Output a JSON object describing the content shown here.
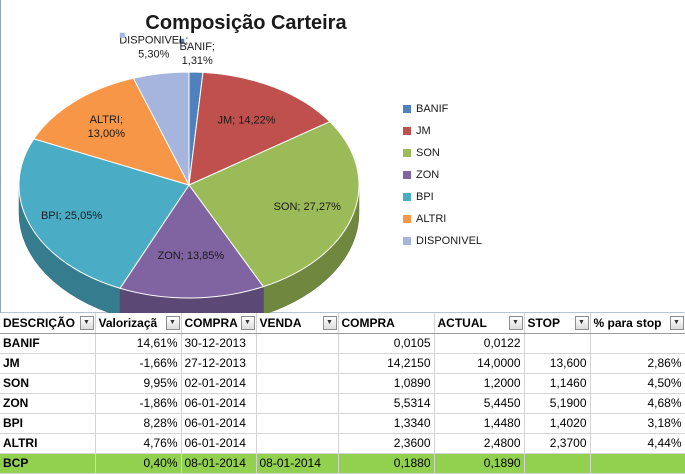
{
  "chart_data": {
    "type": "pie",
    "title": "Composição Carteira",
    "slices": [
      {
        "name": "BANIF",
        "value": 1.31,
        "label": "BANIF; 1,31%",
        "color": "#4f81bd"
      },
      {
        "name": "JM",
        "value": 14.22,
        "label": "JM; 14,22%",
        "color": "#c0504d"
      },
      {
        "name": "SON",
        "value": 27.27,
        "label": "SON; 27,27%",
        "color": "#9bbb59"
      },
      {
        "name": "ZON",
        "value": 13.85,
        "label": "ZON; 13,85%",
        "color": "#8064a2"
      },
      {
        "name": "BPI",
        "value": 25.05,
        "label": "BPI; 25,05%",
        "color": "#4bacc6"
      },
      {
        "name": "ALTRI",
        "value": 13.0,
        "label": "ALTRI; 13,00%",
        "color": "#f79646"
      },
      {
        "name": "DISPONIVEL",
        "value": 5.3,
        "label": "DISPONIVEL; 5,30%",
        "color": "#a5b5dd"
      }
    ],
    "legend_position": "right"
  },
  "table": {
    "headers": [
      "DESCRIÇÃO",
      "Valorizaçã",
      "COMPRA",
      "VENDA",
      "COMPRA",
      "ACTUAL",
      "STOP",
      "% para stop"
    ],
    "filter_icon": "dropdown-arrow-icon",
    "filter_glyph": "▼",
    "rows": [
      {
        "cells": [
          "BANIF",
          "14,61%",
          "30-12-2013",
          "",
          "0,0105",
          "0,0122",
          "",
          ""
        ],
        "highlight": false
      },
      {
        "cells": [
          "JM",
          "-1,66%",
          "27-12-2013",
          "",
          "14,2150",
          "14,0000",
          "13,600",
          "2,86%"
        ],
        "highlight": false
      },
      {
        "cells": [
          "SON",
          "9,95%",
          "02-01-2014",
          "",
          "1,0890",
          "1,2000",
          "1,1460",
          "4,50%"
        ],
        "highlight": false
      },
      {
        "cells": [
          "ZON",
          "-1,86%",
          "06-01-2014",
          "",
          "5,5314",
          "5,4450",
          "5,1900",
          "4,68%"
        ],
        "highlight": false
      },
      {
        "cells": [
          "BPI",
          "8,28%",
          "06-01-2014",
          "",
          "1,3340",
          "1,4480",
          "1,4020",
          "3,18%"
        ],
        "highlight": false
      },
      {
        "cells": [
          "ALTRI",
          "4,76%",
          "06-01-2014",
          "",
          "2,3600",
          "2,4800",
          "2,3700",
          "4,44%"
        ],
        "highlight": false
      },
      {
        "cells": [
          "BCP",
          "0,40%",
          "08-01-2014",
          "08-01-2014",
          "0,1880",
          "0,1890",
          "",
          ""
        ],
        "highlight": true
      }
    ],
    "highlight_color": "#92d050"
  }
}
